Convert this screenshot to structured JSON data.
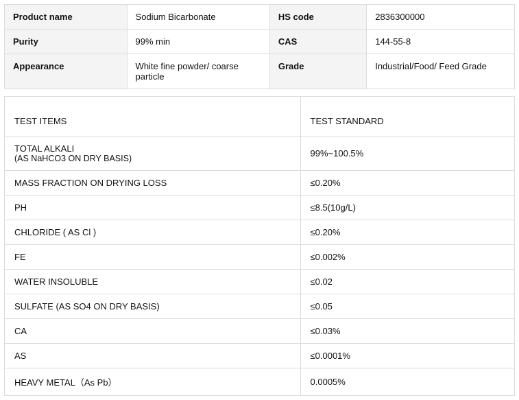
{
  "info": {
    "rows": [
      {
        "label1": "Product name",
        "value1": "Sodium Bicarbonate",
        "label2": "HS code",
        "value2": "2836300000"
      },
      {
        "label1": "Purity",
        "value1": "99% min",
        "label2": "CAS",
        "value2": "144-55-8"
      },
      {
        "label1": "Appearance",
        "value1": "White fine powder/ coarse particle",
        "label2": "Grade",
        "value2": "Industrial/Food/ Feed Grade"
      }
    ],
    "col_widths": [
      "24%",
      "28%",
      "19%",
      "29%"
    ]
  },
  "spec": {
    "header": {
      "col1": "TEST ITEMS",
      "col2": "TEST STANDARD"
    },
    "rows": [
      {
        "item": "TOTAL ALKALI",
        "sub": "(AS NaHCO3 ON DRY BASIS)",
        "std": "99%~100.5%"
      },
      {
        "item": "MASS FRACTION ON DRYING LOSS",
        "std": "≤0.20%"
      },
      {
        "item": "PH",
        "std": "≤8.5(10g/L)"
      },
      {
        "item": "CHLORIDE ( AS Cl )",
        "std": "≤0.20%"
      },
      {
        "item": "FE",
        "std": "≤0.002%"
      },
      {
        "item": "WATER INSOLUBLE",
        "std": "≤0.02"
      },
      {
        "item": "SULFATE (AS SO4 ON DRY BASIS)",
        "std": "≤0.05"
      },
      {
        "item": "CA",
        "std": "≤0.03%"
      },
      {
        "item": "AS",
        "std": "≤0.0001%"
      },
      {
        "item": "HEAVY METAL（As Pb）",
        "std": "0.0005%"
      }
    ],
    "col_widths": [
      "58%",
      "42%"
    ]
  }
}
